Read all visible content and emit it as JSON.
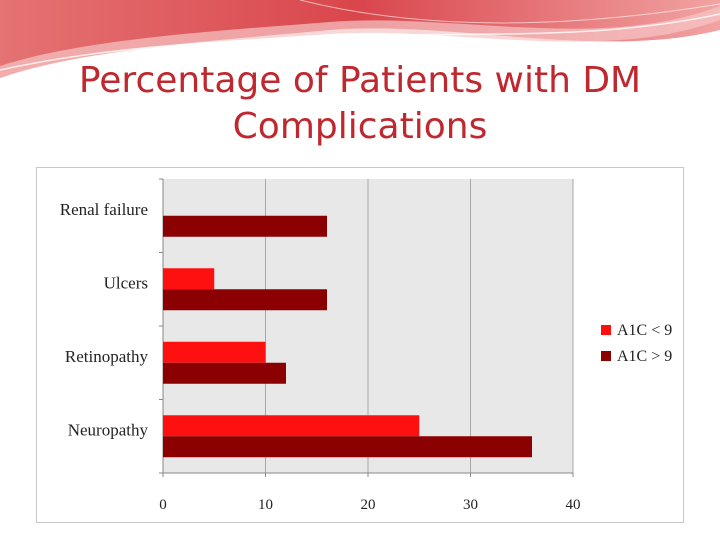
{
  "slide": {
    "title": "Percentage of Patients with DM Complications"
  },
  "colors": {
    "title": "#c0282f",
    "plot_background": "#e8e8e8",
    "series_a1c_lt_9": "#ff1010",
    "series_a1c_gt_9": "#8b0000"
  },
  "chart_data": {
    "type": "bar",
    "orientation": "horizontal",
    "categories": [
      "Renal failure",
      "Ulcers",
      "Retinopathy",
      "Neuropathy"
    ],
    "series": [
      {
        "name": "A1C < 9",
        "color": "#ff1010",
        "values": [
          0,
          5,
          10,
          25
        ]
      },
      {
        "name": "A1C > 9",
        "color": "#8b0000",
        "values": [
          16,
          16,
          12,
          36
        ]
      }
    ],
    "xlim": [
      0,
      40
    ],
    "xticks": [
      "0",
      "10",
      "20",
      "30",
      "40"
    ],
    "grid": true,
    "legend": "right"
  }
}
